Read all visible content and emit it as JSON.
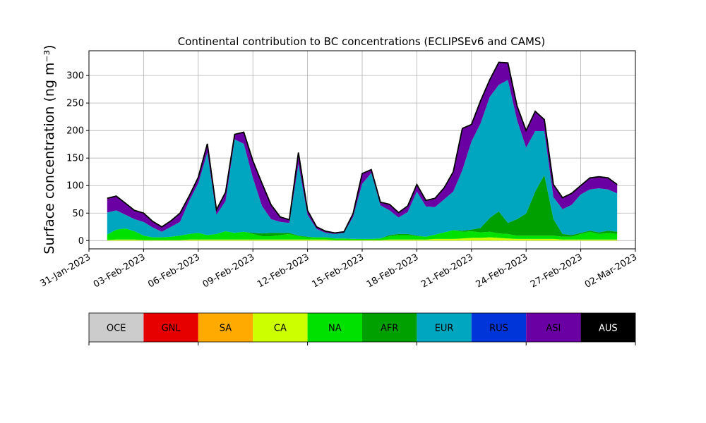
{
  "chart_data": {
    "type": "area",
    "title": "Continental contribution to BC concentrations (ECLIPSEv6 and CAMS)",
    "ylabel": "Surface concentration (ng m⁻³)",
    "xlabel": "",
    "ylim": [
      -15,
      345
    ],
    "yticks": [
      0,
      50,
      100,
      150,
      200,
      250,
      300
    ],
    "xlim": [
      "2023-01-31",
      "2023-03-02"
    ],
    "xticks": [
      "31-Jan-2023",
      "03-Feb-2023",
      "06-Feb-2023",
      "09-Feb-2023",
      "12-Feb-2023",
      "15-Feb-2023",
      "18-Feb-2023",
      "21-Feb-2023",
      "24-Feb-2023",
      "27-Feb-2023",
      "02-Mar-2023"
    ],
    "grid": true,
    "stacked": true,
    "x": [
      "2023-02-01",
      "2023-02-01T12",
      "2023-02-02",
      "2023-02-02T12",
      "2023-02-03",
      "2023-02-03T12",
      "2023-02-04",
      "2023-02-04T12",
      "2023-02-05",
      "2023-02-05T12",
      "2023-02-06",
      "2023-02-06T12",
      "2023-02-07",
      "2023-02-07T12",
      "2023-02-08",
      "2023-02-08T12",
      "2023-02-09",
      "2023-02-09T12",
      "2023-02-10",
      "2023-02-10T12",
      "2023-02-11",
      "2023-02-11T12",
      "2023-02-12",
      "2023-02-12T12",
      "2023-02-13",
      "2023-02-13T12",
      "2023-02-14",
      "2023-02-14T12",
      "2023-02-15",
      "2023-02-15T12",
      "2023-02-16",
      "2023-02-16T12",
      "2023-02-17",
      "2023-02-17T12",
      "2023-02-18",
      "2023-02-18T12",
      "2023-02-19",
      "2023-02-19T12",
      "2023-02-20",
      "2023-02-20T12",
      "2023-02-21",
      "2023-02-21T12",
      "2023-02-22",
      "2023-02-22T12",
      "2023-02-23",
      "2023-02-23T12",
      "2023-02-24",
      "2023-02-24T12",
      "2023-02-25",
      "2023-02-25T12",
      "2023-02-26",
      "2023-02-26T12",
      "2023-02-27",
      "2023-02-27T12",
      "2023-02-28",
      "2023-02-28T12",
      "2023-03-01"
    ],
    "series": [
      {
        "name": "OCE",
        "color": "#cccccc",
        "values": [
          0,
          0,
          0,
          0,
          0,
          0,
          0,
          0,
          0,
          0,
          0,
          0,
          0,
          0,
          0,
          0,
          0,
          0,
          0,
          0,
          0,
          0,
          0,
          0,
          0,
          0,
          0,
          0,
          0,
          0,
          0,
          0,
          0,
          0,
          0,
          0,
          0,
          0,
          0,
          0,
          0,
          0,
          0,
          0,
          0,
          0,
          0,
          0,
          0,
          0,
          0,
          0,
          0,
          0,
          0,
          0,
          0
        ]
      },
      {
        "name": "GNL",
        "color": "#e60000",
        "values": [
          0,
          0,
          0,
          0,
          0,
          0,
          0,
          0,
          0,
          0,
          0,
          0,
          0,
          0,
          0,
          0,
          0,
          0,
          0,
          0,
          0,
          0,
          0,
          0,
          0,
          0,
          0,
          0,
          0,
          0,
          0,
          0,
          0,
          0,
          0,
          0,
          0,
          0,
          0,
          0,
          0,
          0,
          0,
          0,
          0,
          0,
          0,
          0,
          0,
          0,
          0,
          0,
          0,
          0,
          0,
          0,
          0
        ]
      },
      {
        "name": "SA",
        "color": "#ffaa00",
        "values": [
          0,
          0,
          0,
          0,
          0,
          0,
          0,
          0,
          0,
          0,
          0,
          0,
          0,
          0,
          0,
          0,
          0,
          0,
          0,
          0,
          0,
          0,
          0,
          0,
          0,
          0,
          0,
          0,
          0,
          0,
          0,
          0,
          0,
          0,
          0,
          0,
          0,
          0,
          0,
          0,
          0,
          0,
          0,
          0,
          0,
          0,
          0,
          0,
          0,
          0,
          0,
          0,
          0,
          0,
          0,
          0,
          0
        ]
      },
      {
        "name": "CA",
        "color": "#ccff00",
        "values": [
          1,
          2,
          2,
          2,
          1,
          1,
          1,
          1,
          1,
          2,
          2,
          2,
          2,
          2,
          2,
          2,
          2,
          2,
          2,
          2,
          2,
          2,
          2,
          2,
          2,
          1,
          1,
          1,
          1,
          1,
          1,
          2,
          2,
          2,
          2,
          2,
          3,
          3,
          3,
          4,
          5,
          5,
          6,
          5,
          4,
          3,
          3,
          3,
          3,
          3,
          2,
          2,
          2,
          2,
          2,
          2,
          2
        ]
      },
      {
        "name": "NA",
        "color": "#00e100",
        "values": [
          10,
          18,
          20,
          15,
          8,
          5,
          5,
          6,
          8,
          10,
          12,
          8,
          10,
          15,
          12,
          14,
          10,
          6,
          6,
          8,
          10,
          6,
          4,
          4,
          4,
          3,
          3,
          2,
          2,
          2,
          3,
          6,
          8,
          8,
          6,
          5,
          8,
          12,
          16,
          12,
          12,
          10,
          10,
          8,
          8,
          6,
          6,
          6,
          6,
          6,
          5,
          5,
          10,
          14,
          10,
          12,
          10
        ]
      },
      {
        "name": "AFR",
        "color": "#00a000",
        "values": [
          0,
          0,
          0,
          0,
          0,
          0,
          0,
          0,
          0,
          0,
          0,
          0,
          0,
          0,
          0,
          0,
          2,
          5,
          6,
          4,
          2,
          1,
          1,
          0,
          0,
          0,
          0,
          0,
          0,
          0,
          0,
          2,
          2,
          2,
          1,
          0,
          0,
          0,
          0,
          2,
          3,
          8,
          25,
          40,
          20,
          30,
          40,
          80,
          110,
          30,
          5,
          3,
          2,
          2,
          3,
          4,
          4
        ]
      },
      {
        "name": "EUR",
        "color": "#00a6bf",
        "values": [
          40,
          35,
          25,
          22,
          25,
          18,
          10,
          18,
          25,
          60,
          90,
          150,
          35,
          55,
          170,
          160,
          100,
          50,
          25,
          20,
          18,
          130,
          40,
          15,
          8,
          8,
          10,
          40,
          100,
          120,
          60,
          45,
          30,
          40,
          80,
          55,
          50,
          60,
          70,
          110,
          160,
          190,
          220,
          230,
          260,
          180,
          120,
          110,
          80,
          40,
          45,
          55,
          70,
          75,
          80,
          75,
          70
        ]
      },
      {
        "name": "RUS",
        "color": "#0035d9",
        "values": [
          0,
          0,
          0,
          0,
          0,
          0,
          0,
          0,
          0,
          0,
          0,
          0,
          0,
          0,
          0,
          0,
          0,
          0,
          0,
          0,
          0,
          0,
          0,
          0,
          0,
          0,
          0,
          0,
          0,
          0,
          0,
          0,
          0,
          0,
          0,
          0,
          0,
          0,
          0,
          0,
          0,
          0,
          0,
          0,
          0,
          0,
          0,
          0,
          0,
          0,
          0,
          0,
          0,
          0,
          0,
          0,
          0
        ]
      },
      {
        "name": "ASI",
        "color": "#6a00a3",
        "values": [
          25,
          25,
          20,
          15,
          15,
          10,
          8,
          10,
          15,
          8,
          10,
          15,
          8,
          15,
          8,
          20,
          30,
          40,
          25,
          8,
          5,
          20,
          7,
          3,
          2,
          1,
          1,
          5,
          18,
          5,
          5,
          10,
          8,
          10,
          12,
          10,
          15,
          20,
          35,
          75,
          30,
          40,
          30,
          40,
          30,
          25,
          30,
          35,
          20,
          22,
          20,
          20,
          15,
          20,
          20,
          20,
          15
        ]
      },
      {
        "name": "AUS",
        "color": "#000000",
        "values": [
          1,
          1,
          1,
          1,
          1,
          1,
          1,
          1,
          1,
          1,
          1,
          1,
          1,
          1,
          1,
          1,
          1,
          1,
          1,
          1,
          1,
          1,
          1,
          1,
          1,
          1,
          1,
          1,
          1,
          1,
          1,
          1,
          1,
          1,
          1,
          1,
          1,
          1,
          1,
          1,
          1,
          1,
          1,
          1,
          1,
          1,
          1,
          1,
          1,
          1,
          1,
          1,
          1,
          1,
          1,
          1,
          1
        ]
      }
    ],
    "legend": {
      "placement": "bottom",
      "entries": [
        "OCE",
        "GNL",
        "SA",
        "CA",
        "NA",
        "AFR",
        "EUR",
        "RUS",
        "ASI",
        "AUS"
      ],
      "label_colors": [
        "#000000",
        "#000000",
        "#000000",
        "#000000",
        "#000000",
        "#000000",
        "#000000",
        "#000000",
        "#000000",
        "#ffffff"
      ]
    }
  }
}
